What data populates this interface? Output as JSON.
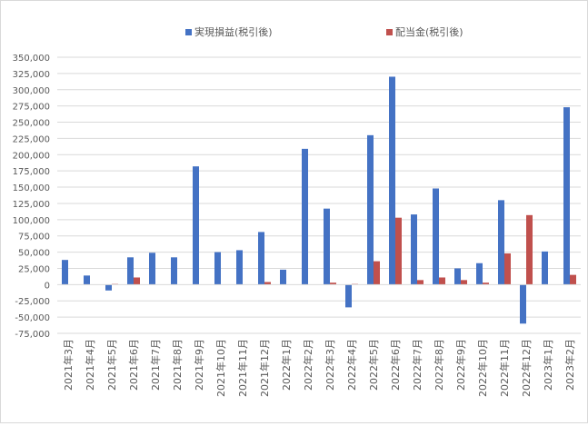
{
  "chart_data": {
    "type": "bar",
    "title": "",
    "xlabel": "",
    "ylabel": "",
    "ylim": [
      -75000,
      350000
    ],
    "ytick_step": 25000,
    "grid": true,
    "legend_position": "top",
    "categories": [
      "2021年3月",
      "2021年4月",
      "2021年5月",
      "2021年6月",
      "2021年7月",
      "2021年8月",
      "2021年9月",
      "2021年10月",
      "2021年11月",
      "2021年12月",
      "2022年1月",
      "2022年2月",
      "2022年3月",
      "2022年4月",
      "2022年5月",
      "2022年6月",
      "2022年7月",
      "2022年8月",
      "2022年9月",
      "2022年10月",
      "2022年11月",
      "2022年12月",
      "2023年1月",
      "2023年2月"
    ],
    "y_tick_labels": [
      "350,000",
      "325,000",
      "300,000",
      "275,000",
      "250,000",
      "225,000",
      "200,000",
      "175,000",
      "150,000",
      "125,000",
      "100,000",
      "75,000",
      "50,000",
      "25,000",
      "0",
      "-25,000",
      "-50,000",
      "-75,000"
    ],
    "series": [
      {
        "name": "実現損益(税引後)",
        "color": "#4472c4",
        "values": [
          38000,
          14000,
          -9000,
          42000,
          49000,
          42000,
          182000,
          50000,
          53000,
          81000,
          23000,
          209000,
          117000,
          -35000,
          230000,
          320000,
          108000,
          148000,
          25000,
          33000,
          130000,
          -60000,
          51000,
          273000
        ]
      },
      {
        "name": "配当金(税引後)",
        "color": "#c0504d",
        "values": [
          0,
          0,
          1000,
          11000,
          0,
          0,
          0,
          0,
          0,
          4000,
          0,
          0,
          3000,
          1000,
          36000,
          103000,
          7000,
          11000,
          7000,
          3000,
          48000,
          107000,
          0,
          15000
        ]
      }
    ]
  }
}
